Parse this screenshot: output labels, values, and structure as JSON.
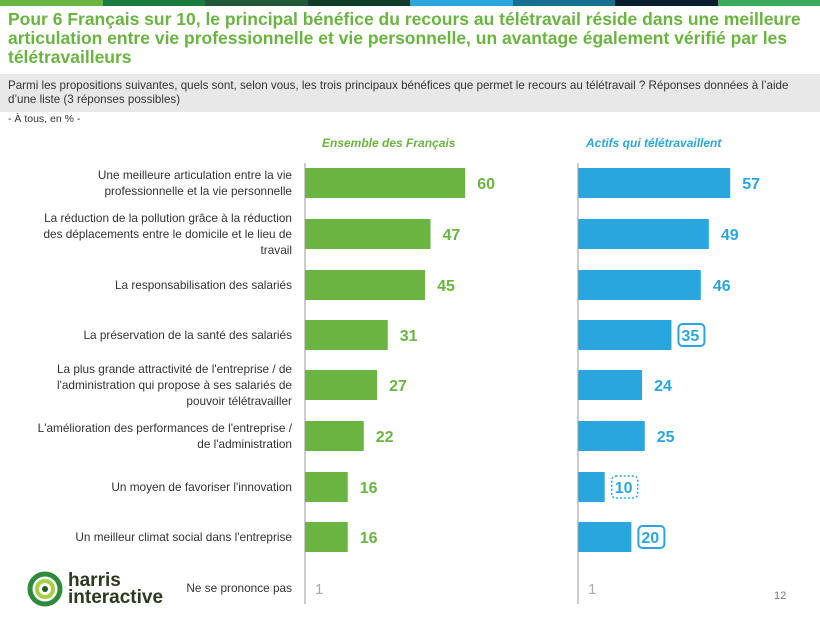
{
  "title": "Pour 6 Français sur 10, le principal bénéfice du recours au télétravail réside dans une meilleure articulation entre vie professionnelle et vie personnelle, un avantage également vérifié par les télétravailleurs",
  "question": "Parmi les propositions suivantes, quels sont, selon vous, les trois principaux bénéfices que permet le recours au télétravail ? Réponses données à l’aide d’une liste (3 réponses possibles)",
  "base": "- À tous, en % -",
  "colors": {
    "title": "#6ab441",
    "green": "#6ab441",
    "blue": "#2aa6df",
    "label_text": "#333333",
    "topbar": [
      "#6ab441",
      "#1b7a3e",
      "#1e5a3a",
      "#0f3d2a",
      "#2aa6df",
      "#16708f",
      "#0b1e2e",
      "#3aaa5c"
    ]
  },
  "chart_data": {
    "type": "bar",
    "orientation": "horizontal",
    "categories": [
      "Une meilleure articulation entre la vie professionnelle et la vie personnelle",
      "La réduction de la pollution grâce à la réduction des déplacements entre le domicile et le lieu de travail",
      "La responsabilisation des salariés",
      "La préservation de la santé des salariés",
      "La plus grande attractivité de l'entreprise / de l'administration qui propose à ses salariés de pouvoir télétravailler",
      "L'amélioration des performances de l'entreprise / de l'administration",
      "Un moyen de favoriser l'innovation",
      "Un meilleur climat social dans l'entreprise"
    ],
    "category_lines": [
      [
        "Une meilleure articulation entre la vie",
        "professionnelle et la vie personnelle"
      ],
      [
        "La réduction de la pollution grâce à la réduction",
        "des déplacements entre le domicile et le lieu de",
        "travail"
      ],
      [
        "La responsabilisation des salariés"
      ],
      [
        "La préservation de la santé des salariés"
      ],
      [
        "La plus grande attractivité de l'entreprise / de",
        "l'administration qui propose à ses salariés de",
        "pouvoir télétravailler"
      ],
      [
        "L'amélioration des performances de l'entreprise /",
        "de l'administration"
      ],
      [
        "Un moyen de favoriser l'innovation"
      ],
      [
        "Un meilleur climat social dans l'entreprise"
      ]
    ],
    "series": [
      {
        "name": "Ensemble des Français",
        "color": "#6ab441",
        "values": [
          60,
          47,
          45,
          31,
          27,
          22,
          16,
          16
        ]
      },
      {
        "name": "Actifs qui télétravaillent",
        "color": "#2aa6df",
        "values": [
          57,
          49,
          46,
          35,
          24,
          25,
          10,
          20
        ],
        "highlight": [
          "none",
          "none",
          "none",
          "box",
          "none",
          "none",
          "dotted",
          "box"
        ]
      }
    ],
    "extra_row": {
      "label": "Ne se prononce pas",
      "values": [
        1,
        1
      ]
    },
    "xlim": [
      0,
      100
    ],
    "title": "",
    "xlabel": "",
    "ylabel": ""
  },
  "brand": {
    "line1": "harris",
    "line2": "interactive"
  },
  "page_number": "12"
}
